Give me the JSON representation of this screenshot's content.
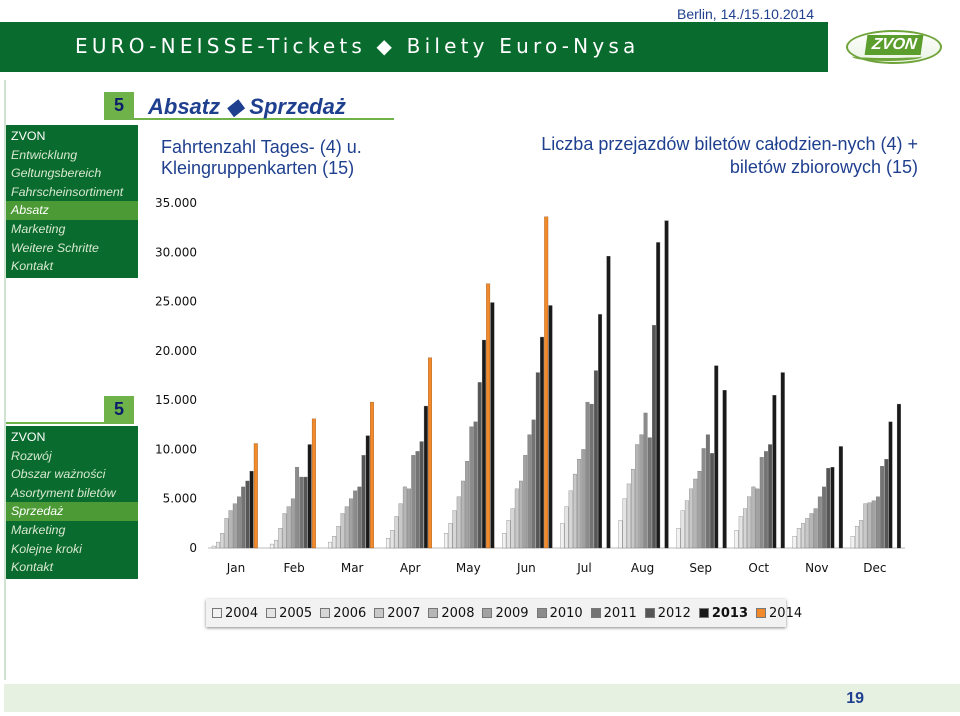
{
  "header": {
    "title": "EURO-NEISSE-Tickets ◆ Bilety Euro-Nysa",
    "date": "Berlin, 14./15.10.2014",
    "logo_text": "ZVON"
  },
  "colors": {
    "header_green": "#0a6b2e",
    "accent_green": "#6fb24a",
    "title_blue": "#1f3f8f",
    "highlight_orange": "#f08a2a"
  },
  "section_number_de": "5",
  "section_number_pl": "5",
  "heading": "Absatz ◆ Sprzedaż",
  "nav_de": [
    "ZVON",
    "Entwicklung",
    "Geltungsbereich",
    "Fahrscheinsortiment",
    "Absatz",
    "Marketing",
    "Weitere Schritte",
    "Kontakt"
  ],
  "nav_pl": [
    "ZVON",
    "Rozwój",
    "Obszar ważności",
    "Asortyment biletów",
    "Sprzedaż",
    "Marketing",
    "Kolejne kroki",
    "Kontakt"
  ],
  "subtitle_de": "Fahrtenzahl Tages- (4) u. Kleingruppenkarten (15)",
  "subtitle_pl": "Liczba przejazdów biletów całodzien-nych (4) + biletów zbiorowych (15)",
  "page_number": "19",
  "chart_data": {
    "type": "bar",
    "categories": [
      "Jan",
      "Feb",
      "Mar",
      "Apr",
      "May",
      "Jun",
      "Jul",
      "Aug",
      "Sep",
      "Oct",
      "Nov",
      "Dec"
    ],
    "ylim": [
      0,
      35000
    ],
    "yticks": [
      "0",
      "5.000",
      "10.000",
      "15.000",
      "20.000",
      "25.000",
      "30.000",
      "35.000"
    ],
    "grid": false,
    "legend_position": "bottom",
    "series": [
      {
        "name": "2004",
        "color": "#f2f2f2",
        "values": [
          200,
          400,
          600,
          1000,
          1500,
          1500,
          2500,
          2800,
          2000,
          1800,
          1200,
          1200
        ]
      },
      {
        "name": "2005",
        "color": "#e4e4e4",
        "values": [
          600,
          800,
          1200,
          1800,
          2500,
          2800,
          4200,
          5000,
          3800,
          3200,
          2000,
          2200
        ]
      },
      {
        "name": "2006",
        "color": "#d6d6d6",
        "values": [
          1500,
          2000,
          2200,
          3200,
          3800,
          4000,
          5800,
          6500,
          4800,
          4000,
          2500,
          2800
        ]
      },
      {
        "name": "2007",
        "color": "#c8c8c8",
        "values": [
          3000,
          3500,
          3500,
          4500,
          5200,
          6000,
          7500,
          8000,
          6000,
          5200,
          3000,
          4500
        ]
      },
      {
        "name": "2008",
        "color": "#b6b6b6",
        "values": [
          3800,
          4200,
          4200,
          6200,
          6800,
          6800,
          9000,
          10500,
          7000,
          6200,
          3500,
          4600
        ]
      },
      {
        "name": "2009",
        "color": "#a2a2a2",
        "values": [
          4500,
          5000,
          5000,
          6000,
          8800,
          9400,
          10000,
          11500,
          7800,
          6000,
          4000,
          4800
        ]
      },
      {
        "name": "2010",
        "color": "#8c8c8c",
        "values": [
          5200,
          8200,
          5800,
          9400,
          12300,
          11500,
          14800,
          13700,
          10100,
          9200,
          5200,
          5200
        ]
      },
      {
        "name": "2011",
        "color": "#747474",
        "values": [
          6200,
          7200,
          6200,
          9800,
          12800,
          13000,
          14600,
          11200,
          11500,
          9800,
          6200,
          8300
        ]
      },
      {
        "name": "2012",
        "color": "#565656",
        "values": [
          6800,
          7200,
          9400,
          10800,
          16800,
          17800,
          18000,
          22600,
          9600,
          10500,
          8100,
          9000
        ]
      },
      {
        "name": "2013",
        "color": "#1a1a1a",
        "values": [
          7800,
          10500,
          11400,
          14400,
          21100,
          21400,
          23700,
          31000,
          18500,
          15500,
          8200,
          12800
        ]
      },
      {
        "name": "2014",
        "color": "#f08a2a",
        "values": [
          10600,
          13100,
          14800,
          19300,
          26800,
          33600,
          null,
          null,
          null,
          null,
          null,
          null
        ]
      }
    ],
    "right_partial_2013": [
      null,
      null,
      null,
      null,
      24900,
      24600,
      29600,
      33200,
      16000,
      17800,
      10300,
      14600
    ]
  }
}
